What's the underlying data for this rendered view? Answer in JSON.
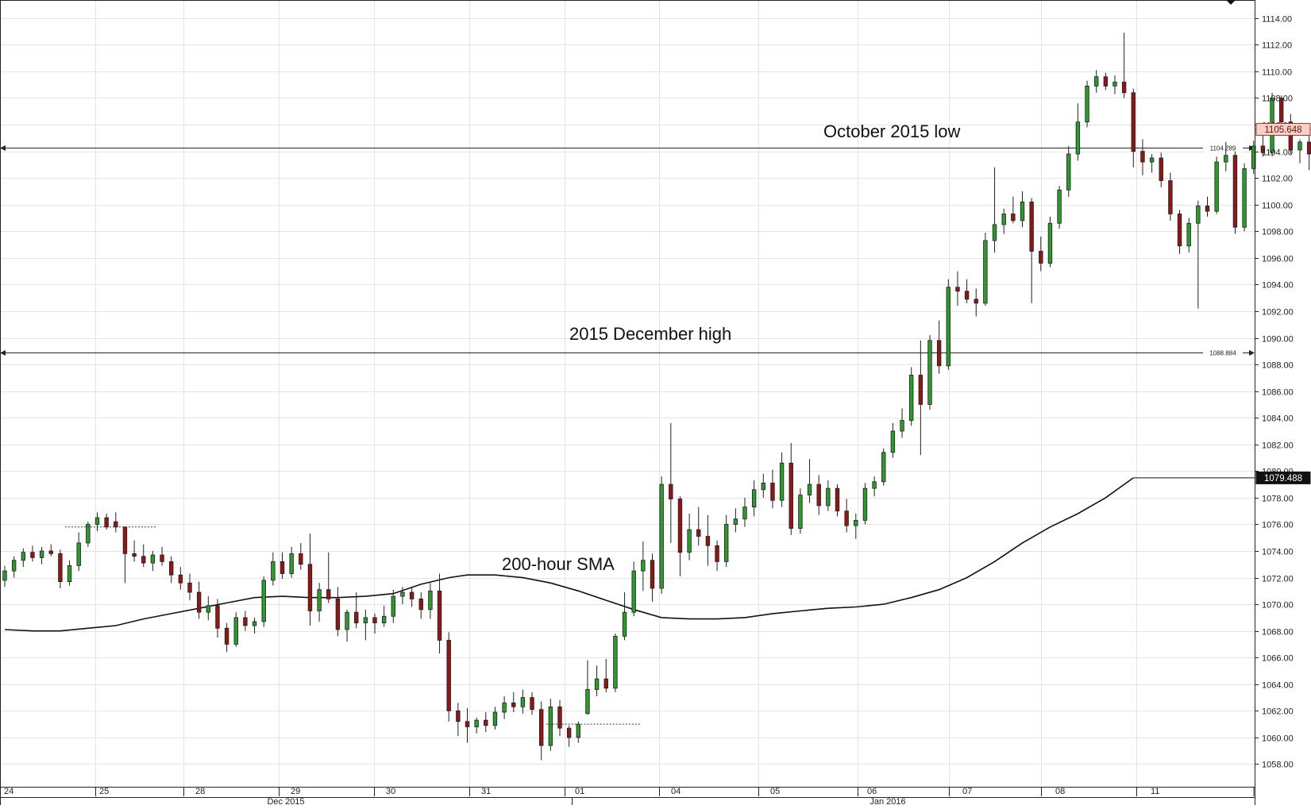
{
  "chart_data": {
    "type": "candlestick",
    "y_axis": {
      "range": [
        1056.3,
        1115.3
      ],
      "ticks": [
        "1058.00",
        "1060.00",
        "1062.00",
        "1064.00",
        "1066.00",
        "1068.00",
        "1070.00",
        "1072.00",
        "1074.00",
        "1076.00",
        "1078.00",
        "1080.00",
        "1082.00",
        "1084.00",
        "1086.00",
        "1088.00",
        "1090.00",
        "1092.00",
        "1094.00",
        "1096.00",
        "1098.00",
        "1100.00",
        "1102.00",
        "1104.00",
        "1106.00",
        "1108.00",
        "1110.00",
        "1112.00",
        "1114.00"
      ],
      "position": "right"
    },
    "x_axis": {
      "day_labels": [
        "24",
        "25",
        "28",
        "29",
        "30",
        "31",
        "01",
        "04",
        "05",
        "06",
        "07",
        "08",
        "11"
      ],
      "month_labels": [
        "Dec 2015",
        "Jan 2016"
      ]
    },
    "grid": true,
    "levels": [
      {
        "value": 1104.289,
        "label": "1104.289",
        "annotation": "October 2015 low"
      },
      {
        "value": 1088.884,
        "label": "1088.884",
        "annotation": "2015 December high"
      }
    ],
    "price_badges": [
      {
        "value": 1105.648,
        "label": "1105.648",
        "style": "last-price"
      },
      {
        "value": 1079.488,
        "label": "1079.488",
        "style": "sma"
      }
    ],
    "sma": {
      "name": "200-hour SMA",
      "points": [
        [
          0,
          1068.1
        ],
        [
          3,
          1068.0
        ],
        [
          6,
          1068.0
        ],
        [
          9,
          1068.2
        ],
        [
          12,
          1068.4
        ],
        [
          15,
          1068.9
        ],
        [
          18,
          1069.3
        ],
        [
          21,
          1069.7
        ],
        [
          24,
          1070.1
        ],
        [
          27,
          1070.5
        ],
        [
          30,
          1070.6
        ],
        [
          33,
          1070.5
        ],
        [
          36,
          1070.5
        ],
        [
          39,
          1070.6
        ],
        [
          42,
          1070.8
        ],
        [
          45,
          1071.5
        ],
        [
          48,
          1072.0
        ],
        [
          50,
          1072.2
        ],
        [
          53,
          1072.2
        ],
        [
          56,
          1072.0
        ],
        [
          59,
          1071.6
        ],
        [
          62,
          1071.0
        ],
        [
          65,
          1070.3
        ],
        [
          68,
          1069.6
        ],
        [
          71,
          1069.0
        ],
        [
          74,
          1068.9
        ],
        [
          77,
          1068.9
        ],
        [
          80,
          1069.0
        ],
        [
          83,
          1069.3
        ],
        [
          86,
          1069.5
        ],
        [
          89,
          1069.7
        ],
        [
          92,
          1069.8
        ],
        [
          95,
          1070.0
        ],
        [
          98,
          1070.5
        ],
        [
          101,
          1071.1
        ],
        [
          104,
          1072.0
        ],
        [
          107,
          1073.2
        ],
        [
          110,
          1074.6
        ],
        [
          113,
          1075.8
        ],
        [
          116,
          1076.8
        ],
        [
          119,
          1078.0
        ],
        [
          122,
          1079.49
        ]
      ]
    },
    "gaps": [
      [
        7,
        1075.8
      ],
      [
        59,
        1061.0
      ]
    ],
    "ohlc": [
      [
        1071.8,
        1072.9,
        1071.3,
        1072.5
      ],
      [
        1072.5,
        1073.6,
        1072.0,
        1073.3
      ],
      [
        1073.3,
        1074.2,
        1072.8,
        1073.9
      ],
      [
        1073.9,
        1074.4,
        1073.2,
        1073.5
      ],
      [
        1073.5,
        1074.3,
        1073.0,
        1074.0
      ],
      [
        1074.0,
        1074.5,
        1073.6,
        1073.8
      ],
      [
        1073.8,
        1074.1,
        1071.2,
        1071.7
      ],
      [
        1071.7,
        1073.3,
        1071.4,
        1072.9
      ],
      [
        1072.9,
        1075.4,
        1072.5,
        1074.6
      ],
      [
        1074.6,
        1076.2,
        1074.3,
        1076.0
      ],
      [
        1076.0,
        1076.9,
        1075.5,
        1076.5
      ],
      [
        1076.5,
        1076.8,
        1075.6,
        1075.8
      ],
      [
        1076.2,
        1076.9,
        1075.4,
        1075.8
      ],
      [
        1075.8,
        1075.8,
        1071.6,
        1073.8
      ],
      [
        1073.8,
        1074.8,
        1073.2,
        1073.6
      ],
      [
        1073.6,
        1074.5,
        1072.8,
        1073.1
      ],
      [
        1073.1,
        1074.0,
        1072.5,
        1073.7
      ],
      [
        1073.7,
        1074.3,
        1072.9,
        1073.2
      ],
      [
        1073.2,
        1073.6,
        1071.6,
        1072.2
      ],
      [
        1072.2,
        1072.8,
        1071.1,
        1071.6
      ],
      [
        1071.6,
        1072.3,
        1070.3,
        1070.9
      ],
      [
        1070.9,
        1071.7,
        1068.9,
        1069.4
      ],
      [
        1069.4,
        1070.6,
        1068.8,
        1069.9
      ],
      [
        1069.9,
        1070.4,
        1067.5,
        1068.2
      ],
      [
        1068.2,
        1068.6,
        1066.4,
        1067.0
      ],
      [
        1067.0,
        1069.4,
        1066.8,
        1069.0
      ],
      [
        1069.0,
        1069.5,
        1068.0,
        1068.4
      ],
      [
        1068.4,
        1069.0,
        1067.8,
        1068.7
      ],
      [
        1068.7,
        1072.1,
        1068.3,
        1071.8
      ],
      [
        1071.8,
        1073.9,
        1071.4,
        1073.2
      ],
      [
        1073.2,
        1073.9,
        1071.9,
        1072.3
      ],
      [
        1072.3,
        1074.3,
        1072.0,
        1073.8
      ],
      [
        1073.8,
        1074.6,
        1072.6,
        1073.0
      ],
      [
        1073.0,
        1075.3,
        1068.4,
        1069.5
      ],
      [
        1069.5,
        1071.6,
        1068.7,
        1071.1
      ],
      [
        1071.1,
        1073.9,
        1070.1,
        1070.4
      ],
      [
        1070.4,
        1071.3,
        1067.6,
        1068.1
      ],
      [
        1068.1,
        1069.6,
        1067.2,
        1069.4
      ],
      [
        1069.4,
        1070.9,
        1068.2,
        1068.6
      ],
      [
        1068.6,
        1069.6,
        1067.3,
        1069.0
      ],
      [
        1069.0,
        1069.3,
        1067.8,
        1068.6
      ],
      [
        1068.6,
        1069.9,
        1068.3,
        1069.1
      ],
      [
        1069.1,
        1071.1,
        1068.6,
        1070.6
      ],
      [
        1070.6,
        1071.3,
        1070.0,
        1070.9
      ],
      [
        1070.9,
        1071.3,
        1069.8,
        1070.4
      ],
      [
        1070.4,
        1070.9,
        1068.9,
        1069.6
      ],
      [
        1069.6,
        1071.6,
        1068.9,
        1071.0
      ],
      [
        1071.0,
        1072.3,
        1066.3,
        1067.3
      ],
      [
        1067.3,
        1067.9,
        1061.2,
        1062.0
      ],
      [
        1062.0,
        1062.6,
        1060.1,
        1061.2
      ],
      [
        1061.2,
        1062.2,
        1059.6,
        1060.8
      ],
      [
        1060.8,
        1061.5,
        1060.3,
        1061.3
      ],
      [
        1061.3,
        1061.9,
        1060.4,
        1060.9
      ],
      [
        1060.9,
        1062.3,
        1060.6,
        1061.9
      ],
      [
        1061.9,
        1063.1,
        1061.4,
        1062.6
      ],
      [
        1062.6,
        1063.4,
        1061.9,
        1062.3
      ],
      [
        1062.3,
        1063.6,
        1061.8,
        1063.0
      ],
      [
        1063.0,
        1063.4,
        1061.7,
        1062.1
      ],
      [
        1062.1,
        1062.7,
        1058.3,
        1059.4
      ],
      [
        1059.4,
        1062.9,
        1059.0,
        1062.3
      ],
      [
        1062.3,
        1062.8,
        1060.1,
        1060.7
      ],
      [
        1060.7,
        1060.9,
        1059.3,
        1060.0
      ],
      [
        1060.0,
        1061.2,
        1059.6,
        1061.0
      ],
      [
        1061.8,
        1065.8,
        1061.7,
        1063.6
      ],
      [
        1063.6,
        1065.4,
        1063.1,
        1064.4
      ],
      [
        1064.4,
        1065.9,
        1063.4,
        1063.7
      ],
      [
        1063.7,
        1067.8,
        1063.4,
        1067.6
      ],
      [
        1067.6,
        1070.9,
        1067.3,
        1069.4
      ],
      [
        1069.4,
        1073.2,
        1069.1,
        1072.5
      ],
      [
        1072.5,
        1074.7,
        1071.0,
        1073.3
      ],
      [
        1073.3,
        1073.8,
        1070.2,
        1071.2
      ],
      [
        1071.2,
        1079.6,
        1070.8,
        1079.0
      ],
      [
        1079.0,
        1083.6,
        1074.6,
        1077.9
      ],
      [
        1077.9,
        1078.1,
        1072.1,
        1073.9
      ],
      [
        1073.9,
        1076.8,
        1073.3,
        1075.6
      ],
      [
        1075.6,
        1077.3,
        1074.4,
        1075.1
      ],
      [
        1075.1,
        1076.7,
        1072.9,
        1074.4
      ],
      [
        1074.4,
        1074.8,
        1072.5,
        1073.2
      ],
      [
        1073.2,
        1076.7,
        1072.8,
        1076.0
      ],
      [
        1076.0,
        1077.2,
        1075.4,
        1076.4
      ],
      [
        1076.4,
        1078.0,
        1075.8,
        1077.3
      ],
      [
        1077.3,
        1079.3,
        1076.6,
        1078.6
      ],
      [
        1078.6,
        1079.8,
        1078.0,
        1079.1
      ],
      [
        1079.1,
        1080.1,
        1077.2,
        1077.8
      ],
      [
        1077.8,
        1081.4,
        1077.3,
        1080.6
      ],
      [
        1080.6,
        1082.1,
        1075.2,
        1075.7
      ],
      [
        1075.7,
        1078.7,
        1075.3,
        1078.2
      ],
      [
        1078.2,
        1080.9,
        1077.6,
        1079.0
      ],
      [
        1079.0,
        1079.7,
        1076.7,
        1077.4
      ],
      [
        1077.4,
        1079.3,
        1077.0,
        1078.7
      ],
      [
        1078.7,
        1079.0,
        1076.6,
        1077.0
      ],
      [
        1077.0,
        1077.9,
        1075.4,
        1075.9
      ],
      [
        1075.9,
        1076.8,
        1074.9,
        1076.3
      ],
      [
        1076.3,
        1079.1,
        1076.0,
        1078.7
      ],
      [
        1078.7,
        1079.6,
        1078.1,
        1079.2
      ],
      [
        1079.2,
        1081.7,
        1078.9,
        1081.4
      ],
      [
        1081.4,
        1083.6,
        1081.0,
        1083.0
      ],
      [
        1083.0,
        1084.7,
        1082.5,
        1083.8
      ],
      [
        1083.8,
        1087.8,
        1083.4,
        1087.2
      ],
      [
        1087.2,
        1089.8,
        1081.2,
        1085.0
      ],
      [
        1085.0,
        1090.2,
        1084.6,
        1089.8
      ],
      [
        1089.8,
        1091.3,
        1087.3,
        1087.9
      ],
      [
        1087.9,
        1094.4,
        1087.6,
        1093.8
      ],
      [
        1093.8,
        1095.0,
        1092.4,
        1093.5
      ],
      [
        1093.5,
        1094.4,
        1092.6,
        1092.9
      ],
      [
        1092.9,
        1093.7,
        1091.6,
        1092.6
      ],
      [
        1092.6,
        1097.9,
        1092.4,
        1097.3
      ],
      [
        1097.3,
        1102.8,
        1096.4,
        1098.5
      ],
      [
        1098.5,
        1099.7,
        1097.8,
        1099.3
      ],
      [
        1099.3,
        1100.6,
        1098.6,
        1098.8
      ],
      [
        1098.8,
        1101.0,
        1098.3,
        1100.2
      ],
      [
        1100.2,
        1100.5,
        1092.6,
        1096.5
      ],
      [
        1096.5,
        1097.6,
        1095.0,
        1095.6
      ],
      [
        1095.6,
        1099.1,
        1095.3,
        1098.6
      ],
      [
        1098.6,
        1101.4,
        1098.2,
        1101.1
      ],
      [
        1101.1,
        1104.4,
        1100.6,
        1103.8
      ],
      [
        1103.8,
        1107.6,
        1103.3,
        1106.2
      ],
      [
        1106.2,
        1109.3,
        1105.8,
        1108.9
      ],
      [
        1108.9,
        1110.1,
        1108.4,
        1109.6
      ],
      [
        1109.6,
        1109.9,
        1108.6,
        1108.9
      ],
      [
        1108.9,
        1109.7,
        1108.3,
        1109.2
      ],
      [
        1109.2,
        1112.9,
        1108.0,
        1108.4
      ],
      [
        1108.4,
        1108.7,
        1102.8,
        1104.0
      ],
      [
        1104.0,
        1104.9,
        1102.2,
        1103.2
      ],
      [
        1103.2,
        1103.8,
        1102.4,
        1103.5
      ],
      [
        1103.5,
        1103.9,
        1101.3,
        1101.8
      ],
      [
        1101.8,
        1102.4,
        1098.8,
        1099.3
      ],
      [
        1099.3,
        1099.6,
        1096.3,
        1096.9
      ],
      [
        1096.9,
        1099.0,
        1096.4,
        1098.6
      ],
      [
        1098.6,
        1100.3,
        1092.2,
        1099.9
      ],
      [
        1099.9,
        1100.6,
        1099.1,
        1099.5
      ],
      [
        1099.5,
        1103.6,
        1099.3,
        1103.2
      ],
      [
        1103.2,
        1104.7,
        1102.5,
        1103.7
      ],
      [
        1103.7,
        1104.0,
        1097.8,
        1098.3
      ],
      [
        1098.3,
        1103.1,
        1098.0,
        1102.7
      ],
      [
        1102.7,
        1104.8,
        1102.3,
        1104.4
      ],
      [
        1104.4,
        1105.3,
        1103.6,
        1103.9
      ],
      [
        1103.9,
        1108.4,
        1103.6,
        1108.0
      ],
      [
        1108.0,
        1108.2,
        1105.8,
        1106.2
      ],
      [
        1106.2,
        1106.8,
        1103.8,
        1104.1
      ],
      [
        1104.1,
        1104.9,
        1103.1,
        1104.7
      ],
      [
        1104.7,
        1105.4,
        1102.6,
        1103.8
      ],
      [
        1103.8,
        1106.1,
        1103.4,
        1105.7
      ],
      [
        1105.7,
        1107.8,
        1105.3,
        1107.3
      ],
      [
        1107.3,
        1107.5,
        1105.0,
        1105.6
      ]
    ]
  }
}
